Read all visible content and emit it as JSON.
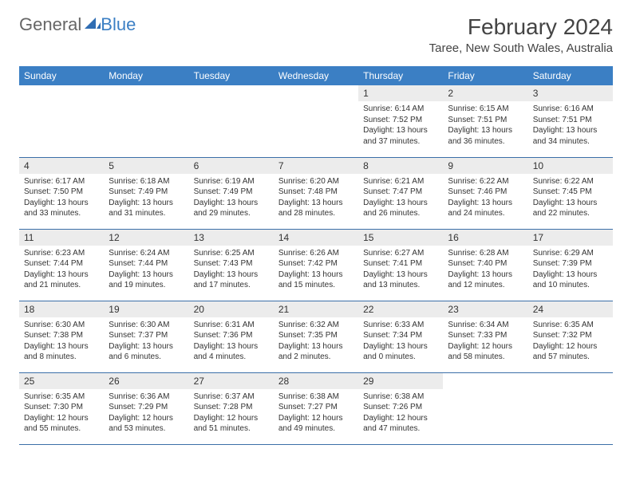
{
  "logo": {
    "text1": "General",
    "text2": "Blue"
  },
  "title": "February 2024",
  "location": "Taree, New South Wales, Australia",
  "colors": {
    "header_bg": "#3b7fc4",
    "header_text": "#ffffff",
    "daynum_bg": "#ececec",
    "border": "#3b6fa8",
    "text": "#333333"
  },
  "weekdays": [
    "Sunday",
    "Monday",
    "Tuesday",
    "Wednesday",
    "Thursday",
    "Friday",
    "Saturday"
  ],
  "weeks": [
    [
      null,
      null,
      null,
      null,
      {
        "n": "1",
        "sr": "Sunrise: 6:14 AM",
        "ss": "Sunset: 7:52 PM",
        "dl": "Daylight: 13 hours and 37 minutes."
      },
      {
        "n": "2",
        "sr": "Sunrise: 6:15 AM",
        "ss": "Sunset: 7:51 PM",
        "dl": "Daylight: 13 hours and 36 minutes."
      },
      {
        "n": "3",
        "sr": "Sunrise: 6:16 AM",
        "ss": "Sunset: 7:51 PM",
        "dl": "Daylight: 13 hours and 34 minutes."
      }
    ],
    [
      {
        "n": "4",
        "sr": "Sunrise: 6:17 AM",
        "ss": "Sunset: 7:50 PM",
        "dl": "Daylight: 13 hours and 33 minutes."
      },
      {
        "n": "5",
        "sr": "Sunrise: 6:18 AM",
        "ss": "Sunset: 7:49 PM",
        "dl": "Daylight: 13 hours and 31 minutes."
      },
      {
        "n": "6",
        "sr": "Sunrise: 6:19 AM",
        "ss": "Sunset: 7:49 PM",
        "dl": "Daylight: 13 hours and 29 minutes."
      },
      {
        "n": "7",
        "sr": "Sunrise: 6:20 AM",
        "ss": "Sunset: 7:48 PM",
        "dl": "Daylight: 13 hours and 28 minutes."
      },
      {
        "n": "8",
        "sr": "Sunrise: 6:21 AM",
        "ss": "Sunset: 7:47 PM",
        "dl": "Daylight: 13 hours and 26 minutes."
      },
      {
        "n": "9",
        "sr": "Sunrise: 6:22 AM",
        "ss": "Sunset: 7:46 PM",
        "dl": "Daylight: 13 hours and 24 minutes."
      },
      {
        "n": "10",
        "sr": "Sunrise: 6:22 AM",
        "ss": "Sunset: 7:45 PM",
        "dl": "Daylight: 13 hours and 22 minutes."
      }
    ],
    [
      {
        "n": "11",
        "sr": "Sunrise: 6:23 AM",
        "ss": "Sunset: 7:44 PM",
        "dl": "Daylight: 13 hours and 21 minutes."
      },
      {
        "n": "12",
        "sr": "Sunrise: 6:24 AM",
        "ss": "Sunset: 7:44 PM",
        "dl": "Daylight: 13 hours and 19 minutes."
      },
      {
        "n": "13",
        "sr": "Sunrise: 6:25 AM",
        "ss": "Sunset: 7:43 PM",
        "dl": "Daylight: 13 hours and 17 minutes."
      },
      {
        "n": "14",
        "sr": "Sunrise: 6:26 AM",
        "ss": "Sunset: 7:42 PM",
        "dl": "Daylight: 13 hours and 15 minutes."
      },
      {
        "n": "15",
        "sr": "Sunrise: 6:27 AM",
        "ss": "Sunset: 7:41 PM",
        "dl": "Daylight: 13 hours and 13 minutes."
      },
      {
        "n": "16",
        "sr": "Sunrise: 6:28 AM",
        "ss": "Sunset: 7:40 PM",
        "dl": "Daylight: 13 hours and 12 minutes."
      },
      {
        "n": "17",
        "sr": "Sunrise: 6:29 AM",
        "ss": "Sunset: 7:39 PM",
        "dl": "Daylight: 13 hours and 10 minutes."
      }
    ],
    [
      {
        "n": "18",
        "sr": "Sunrise: 6:30 AM",
        "ss": "Sunset: 7:38 PM",
        "dl": "Daylight: 13 hours and 8 minutes."
      },
      {
        "n": "19",
        "sr": "Sunrise: 6:30 AM",
        "ss": "Sunset: 7:37 PM",
        "dl": "Daylight: 13 hours and 6 minutes."
      },
      {
        "n": "20",
        "sr": "Sunrise: 6:31 AM",
        "ss": "Sunset: 7:36 PM",
        "dl": "Daylight: 13 hours and 4 minutes."
      },
      {
        "n": "21",
        "sr": "Sunrise: 6:32 AM",
        "ss": "Sunset: 7:35 PM",
        "dl": "Daylight: 13 hours and 2 minutes."
      },
      {
        "n": "22",
        "sr": "Sunrise: 6:33 AM",
        "ss": "Sunset: 7:34 PM",
        "dl": "Daylight: 13 hours and 0 minutes."
      },
      {
        "n": "23",
        "sr": "Sunrise: 6:34 AM",
        "ss": "Sunset: 7:33 PM",
        "dl": "Daylight: 12 hours and 58 minutes."
      },
      {
        "n": "24",
        "sr": "Sunrise: 6:35 AM",
        "ss": "Sunset: 7:32 PM",
        "dl": "Daylight: 12 hours and 57 minutes."
      }
    ],
    [
      {
        "n": "25",
        "sr": "Sunrise: 6:35 AM",
        "ss": "Sunset: 7:30 PM",
        "dl": "Daylight: 12 hours and 55 minutes."
      },
      {
        "n": "26",
        "sr": "Sunrise: 6:36 AM",
        "ss": "Sunset: 7:29 PM",
        "dl": "Daylight: 12 hours and 53 minutes."
      },
      {
        "n": "27",
        "sr": "Sunrise: 6:37 AM",
        "ss": "Sunset: 7:28 PM",
        "dl": "Daylight: 12 hours and 51 minutes."
      },
      {
        "n": "28",
        "sr": "Sunrise: 6:38 AM",
        "ss": "Sunset: 7:27 PM",
        "dl": "Daylight: 12 hours and 49 minutes."
      },
      {
        "n": "29",
        "sr": "Sunrise: 6:38 AM",
        "ss": "Sunset: 7:26 PM",
        "dl": "Daylight: 12 hours and 47 minutes."
      },
      null,
      null
    ]
  ]
}
